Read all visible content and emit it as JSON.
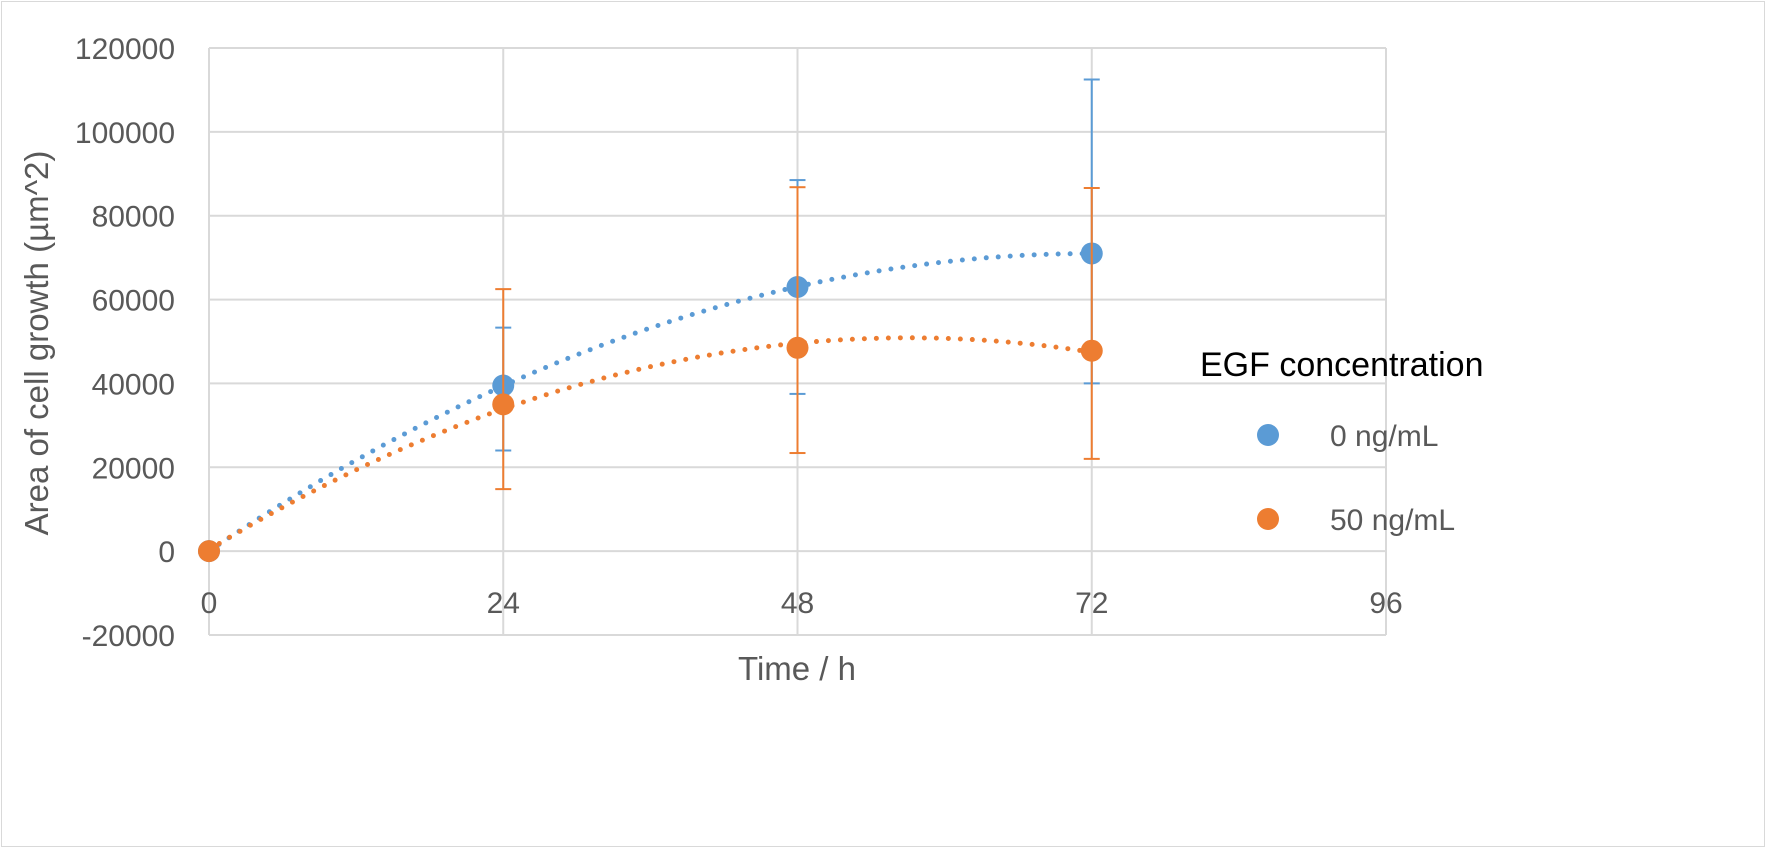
{
  "chart_data": {
    "type": "scatter",
    "title": "",
    "xlabel": "Time / h",
    "ylabel": "Area of cell growth (µm^2)",
    "xlim": [
      0,
      96
    ],
    "ylim": [
      -20000,
      120000
    ],
    "xticks": [
      0,
      24,
      48,
      72,
      96
    ],
    "yticks": [
      -20000,
      0,
      20000,
      40000,
      60000,
      80000,
      100000,
      120000
    ],
    "grid": true,
    "legend": {
      "title": "EGF concentration",
      "placement": "right"
    },
    "trendline": "polynomial order 2, dotted",
    "series": [
      {
        "name": "0 ng/mL",
        "color": "#5b9bd5",
        "x": [
          0,
          24,
          48,
          72
        ],
        "y": [
          0,
          39500,
          63000,
          71000
        ],
        "err_high": [
          0,
          53300,
          88500,
          112500
        ],
        "err_low": [
          0,
          24000,
          37500,
          40000
        ]
      },
      {
        "name": "50 ng/mL",
        "color": "#ed7d31",
        "x": [
          0,
          24,
          48,
          72
        ],
        "y": [
          0,
          35000,
          48500,
          47800
        ],
        "err_high": [
          0,
          62500,
          86800,
          86600
        ],
        "err_low": [
          0,
          14800,
          23400,
          22000
        ]
      }
    ]
  }
}
